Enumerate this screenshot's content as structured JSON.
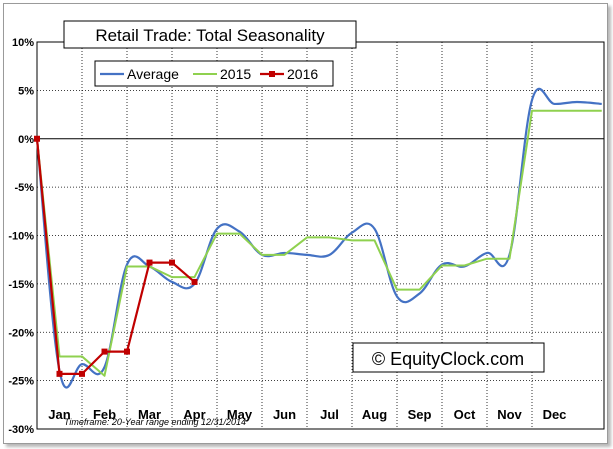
{
  "chart_data": {
    "type": "line",
    "title": "Retail Trade: Total Seasonality",
    "watermark": "© EquityClock.com",
    "footnote": "Timeframe: 20-Year range ending 12/31/2014",
    "ylim": [
      -30,
      10
    ],
    "y_ticks": [
      10,
      5,
      0,
      -5,
      -10,
      -15,
      -20,
      -25,
      -30
    ],
    "y_tick_labels": [
      "10%",
      "5%",
      "0%",
      "-5%",
      "-10%",
      "-15%",
      "-20%",
      "-25%",
      "-30%"
    ],
    "x_range": [
      0,
      12.6
    ],
    "categories": [
      "Jan",
      "Feb",
      "Mar",
      "Apr",
      "May",
      "Jun",
      "Jul",
      "Aug",
      "Sep",
      "Oct",
      "Nov",
      "Dec"
    ],
    "grid": true,
    "legend_position": "top-left",
    "series": [
      {
        "name": "Average",
        "color": "#4472c4",
        "width": 2.2,
        "smooth": true,
        "x": [
          0,
          0.5,
          1.0,
          1.5,
          2.0,
          2.5,
          3.0,
          3.5,
          4.0,
          4.5,
          5.0,
          5.5,
          6.0,
          6.5,
          7.0,
          7.5,
          8.0,
          8.5,
          9.0,
          9.5,
          10.0,
          10.5,
          11.0,
          11.5,
          12.0,
          12.55
        ],
        "y": [
          0,
          -24.0,
          -23.3,
          -23.6,
          -13.0,
          -13.2,
          -14.8,
          -15.0,
          -9.3,
          -9.6,
          -12.0,
          -11.8,
          -12.0,
          -12.0,
          -9.7,
          -9.3,
          -16.3,
          -16.0,
          -13.0,
          -13.2,
          -11.8,
          -12.0,
          4.0,
          3.6,
          3.8,
          3.6
        ]
      },
      {
        "name": "2015",
        "color": "#8fd14f",
        "width": 2,
        "smooth": false,
        "x": [
          0,
          0.5,
          1.0,
          1.5,
          2.0,
          2.5,
          3.0,
          3.5,
          4.0,
          4.5,
          5.0,
          5.5,
          6.0,
          6.5,
          7.0,
          7.5,
          8.0,
          8.5,
          9.0,
          9.5,
          10.0,
          10.5,
          11.0,
          11.5,
          12.0,
          12.55
        ],
        "y": [
          0,
          -22.5,
          -22.5,
          -24.5,
          -13.2,
          -13.2,
          -14.3,
          -14.3,
          -9.8,
          -9.8,
          -12.0,
          -12.0,
          -10.2,
          -10.2,
          -10.5,
          -10.5,
          -15.6,
          -15.6,
          -13.1,
          -13.1,
          -12.4,
          -12.4,
          2.9,
          2.9,
          2.9,
          2.9
        ]
      },
      {
        "name": "2016",
        "color": "#c00000",
        "width": 2.2,
        "smooth": false,
        "markers": true,
        "x": [
          0,
          0.5,
          1.0,
          1.5,
          2.0,
          2.5,
          3.0,
          3.5
        ],
        "y": [
          0,
          -24.3,
          -24.3,
          -22.0,
          -22.0,
          -12.8,
          -12.8,
          -14.8
        ]
      }
    ]
  }
}
